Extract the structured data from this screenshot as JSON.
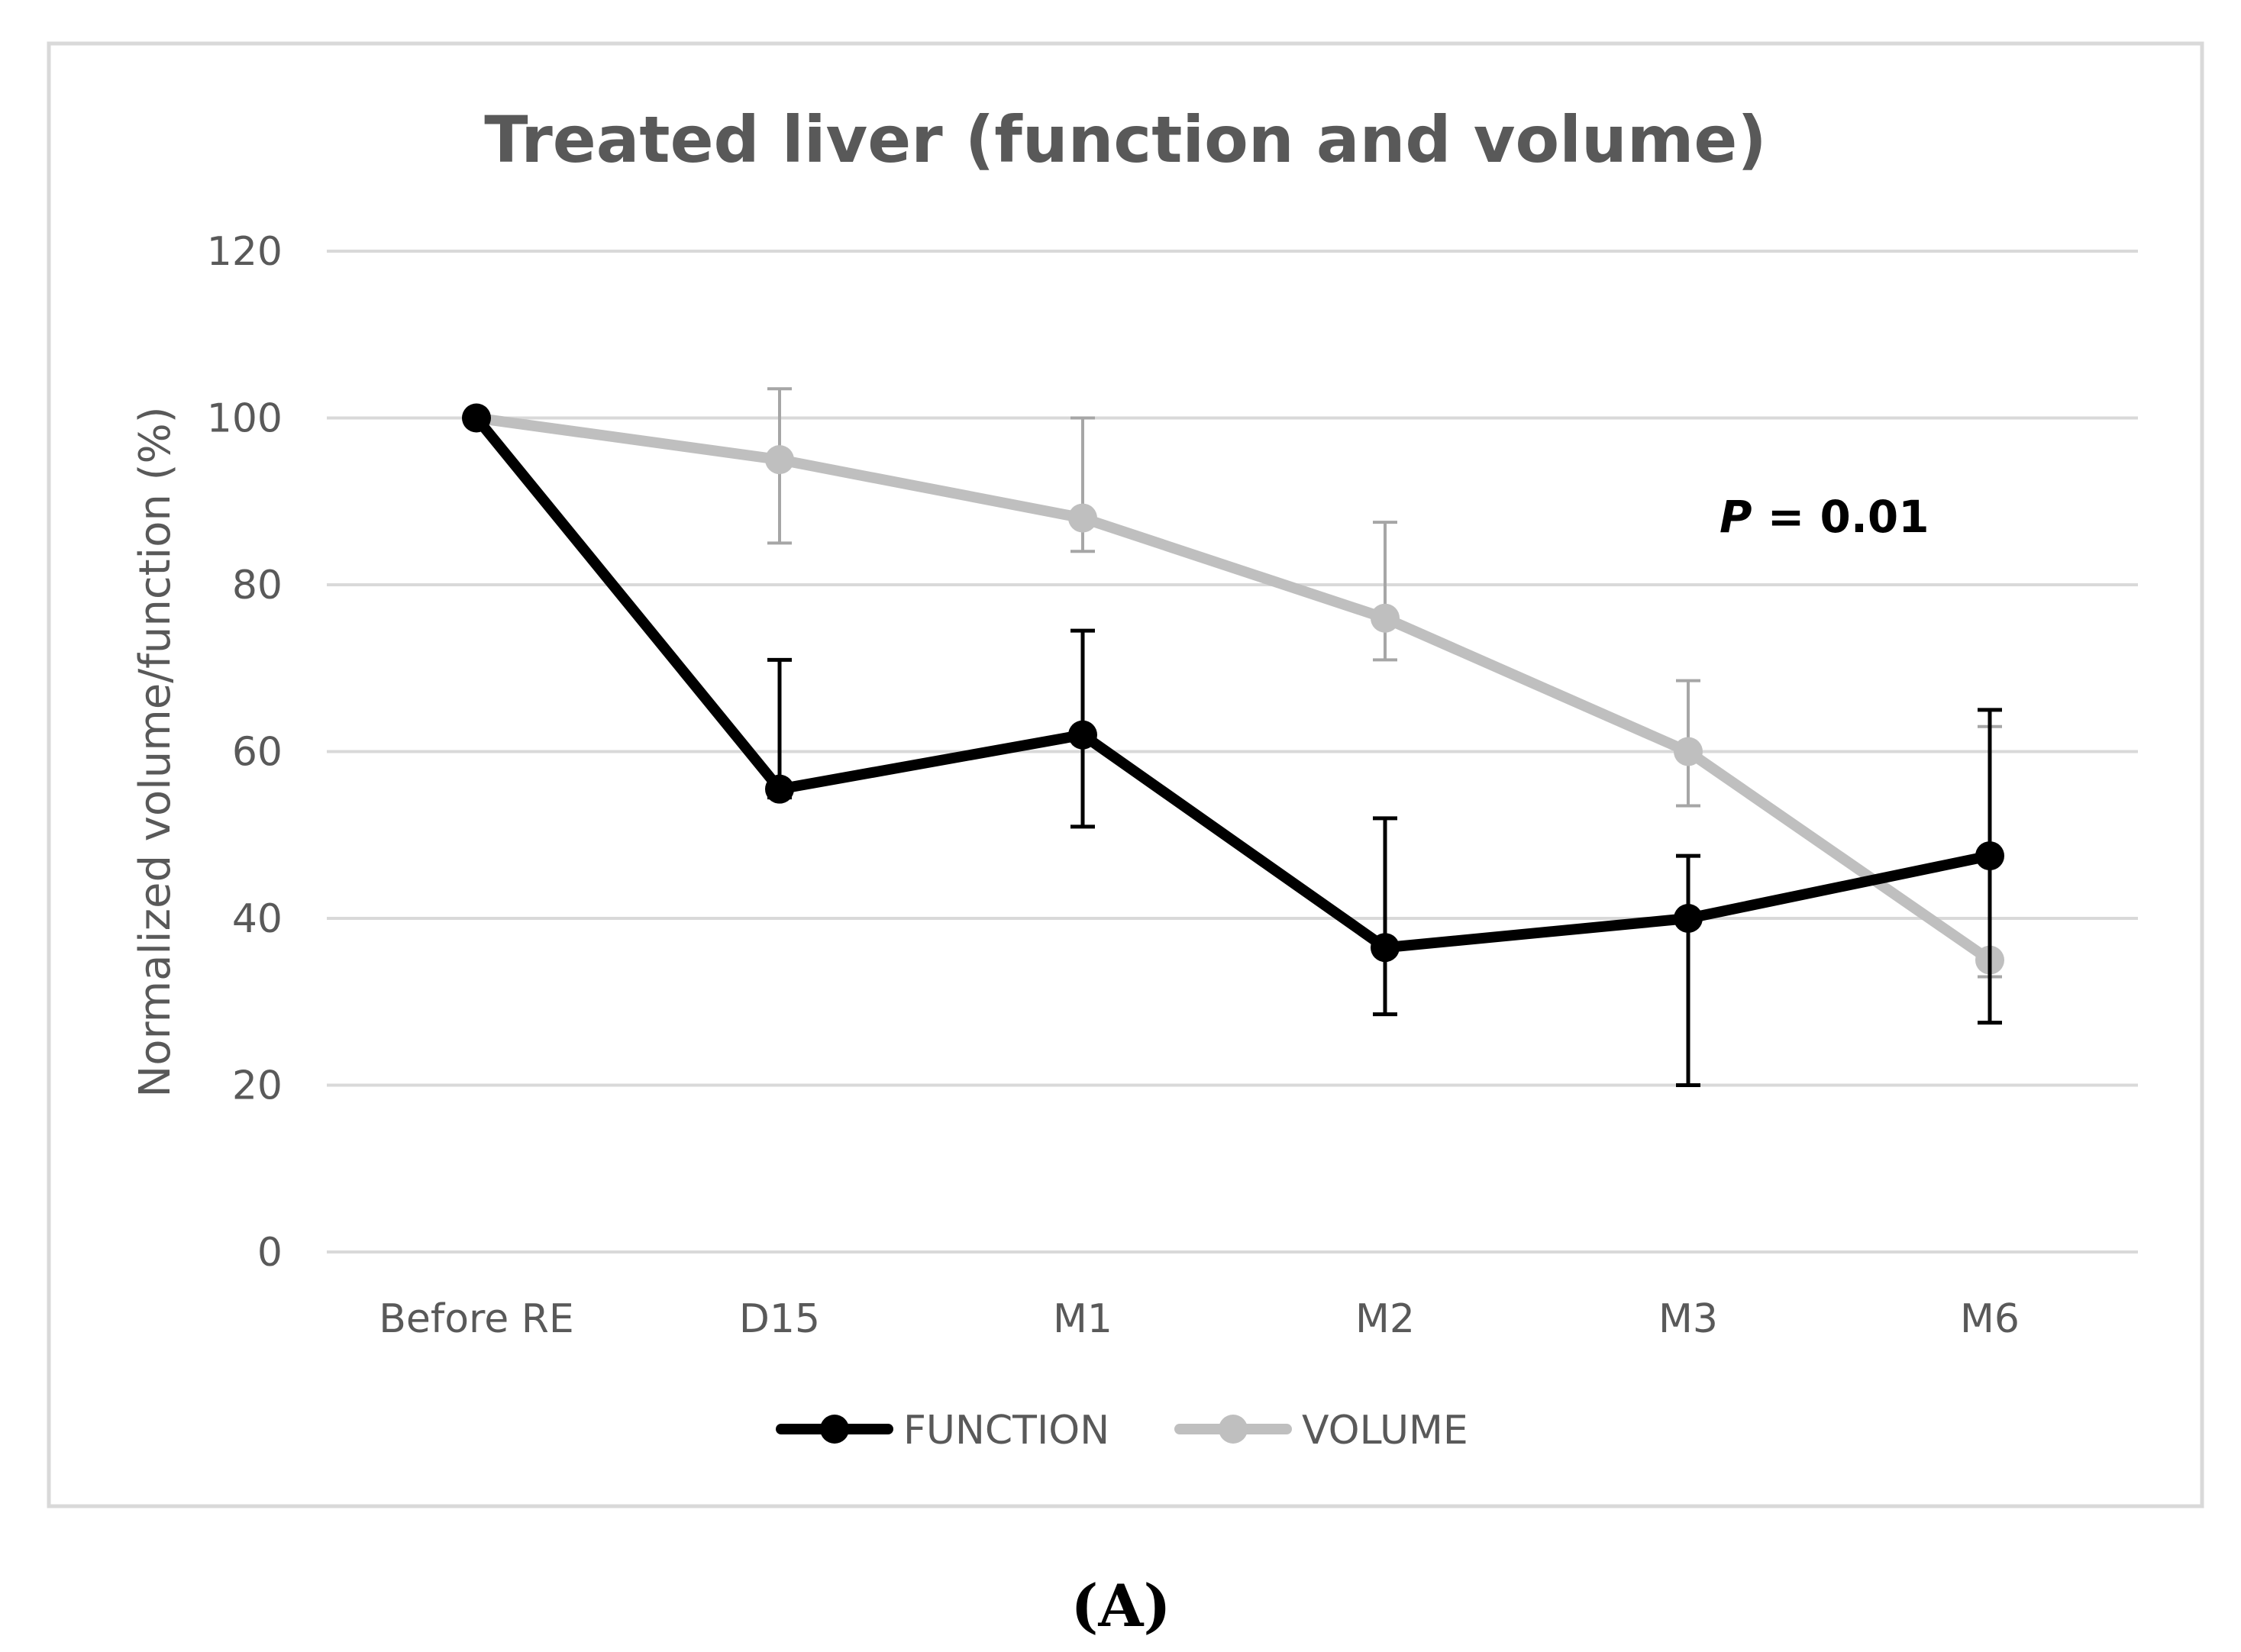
{
  "chart_data": {
    "type": "line",
    "title": "Treated liver (function and volume)",
    "xlabel": "",
    "ylabel": "Normalized volume/function (%)",
    "ylim": [
      0,
      120
    ],
    "yticks": [
      "0",
      "20",
      "40",
      "60",
      "80",
      "100",
      "120"
    ],
    "grid": true,
    "categories": [
      "Before RE",
      "D15",
      "M1",
      "M2",
      "M3",
      "M6"
    ],
    "series": [
      {
        "name": "FUNCTION",
        "color": "#000000",
        "values": [
          100,
          55.5,
          62,
          36.5,
          40,
          47.5
        ],
        "err_upper": [
          100,
          71,
          74.5,
          52,
          47.5,
          65
        ],
        "err_lower": [
          100,
          54.5,
          51,
          28.5,
          20,
          27.5
        ]
      },
      {
        "name": "VOLUME",
        "color": "#bfbfbf",
        "values": [
          100,
          95,
          88,
          76,
          60,
          35
        ],
        "err_upper": [
          100,
          103.5,
          100,
          87.5,
          68.5,
          63
        ],
        "err_lower": [
          100,
          85,
          84,
          71,
          53.5,
          33
        ]
      }
    ],
    "annotation": {
      "p_label": "P",
      "p_rest": " = 0.01",
      "x_anchor_category": 4,
      "y_value": 88.5
    },
    "legend": "bottom-center"
  },
  "panel_label": "(A)"
}
